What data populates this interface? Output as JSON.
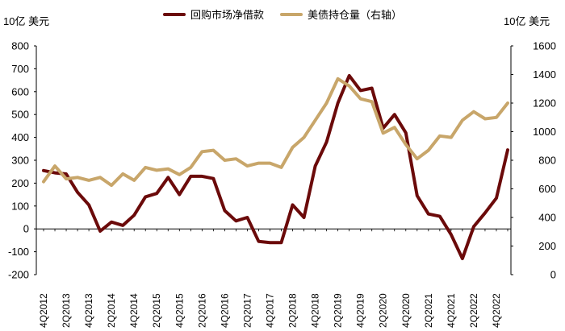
{
  "chart_data": {
    "type": "line",
    "left_unit": "10亿 美元",
    "right_unit": "10亿 美元",
    "colors": {
      "repo": "#6b0a0a",
      "treasury": "#c8a66a"
    },
    "x_categories": [
      "4Q2012",
      "1Q2013",
      "2Q2013",
      "3Q2013",
      "4Q2013",
      "1Q2014",
      "2Q2014",
      "3Q2014",
      "4Q2014",
      "1Q2015",
      "2Q2015",
      "3Q2015",
      "4Q2015",
      "1Q2016",
      "2Q2016",
      "3Q2016",
      "4Q2016",
      "1Q2017",
      "2Q2017",
      "3Q2017",
      "4Q2017",
      "1Q2018",
      "2Q2018",
      "3Q2018",
      "4Q2018",
      "1Q2019",
      "2Q2019",
      "3Q2019",
      "4Q2019",
      "1Q2020",
      "2Q2020",
      "3Q2020",
      "4Q2020",
      "1Q2021",
      "2Q2021",
      "3Q2021",
      "4Q2021",
      "1Q2022",
      "2Q2022",
      "3Q2022",
      "4Q2022",
      "1Q2023"
    ],
    "x_tick_labels": [
      "4Q2012",
      "2Q2013",
      "4Q2013",
      "2Q2014",
      "4Q2014",
      "2Q2015",
      "4Q2015",
      "2Q2016",
      "4Q2016",
      "2Q2017",
      "4Q2017",
      "2Q2018",
      "4Q2018",
      "2Q2019",
      "4Q2019",
      "2Q2020",
      "4Q2020",
      "2Q2021",
      "4Q2021",
      "2Q2022",
      "4Q2022"
    ],
    "y_left": {
      "min": -200,
      "max": 800,
      "ticks": [
        -200,
        -100,
        0,
        100,
        200,
        300,
        400,
        500,
        600,
        700,
        800
      ]
    },
    "y_right": {
      "min": 0,
      "max": 1600,
      "ticks": [
        0,
        200,
        400,
        600,
        800,
        1000,
        1200,
        1400,
        1600
      ]
    },
    "series": [
      {
        "name": "回购市场净借款",
        "axis": "left",
        "color": "#6b0a0a",
        "values": [
          255,
          245,
          240,
          160,
          105,
          -10,
          30,
          15,
          60,
          140,
          155,
          225,
          150,
          230,
          230,
          220,
          80,
          35,
          50,
          -55,
          -60,
          -60,
          105,
          50,
          275,
          380,
          550,
          670,
          605,
          615,
          440,
          500,
          420,
          145,
          65,
          55,
          -25,
          -130,
          10,
          70,
          135,
          345
        ]
      },
      {
        "name": "美债持仓量（右轴）",
        "axis": "right",
        "color": "#c8a66a",
        "values": [
          650,
          760,
          670,
          680,
          660,
          680,
          625,
          705,
          660,
          750,
          730,
          740,
          700,
          750,
          860,
          870,
          800,
          810,
          760,
          780,
          780,
          750,
          890,
          960,
          1080,
          1200,
          1370,
          1320,
          1230,
          1210,
          990,
          1030,
          910,
          810,
          870,
          970,
          960,
          1080,
          1140,
          1090,
          1100,
          1200
        ]
      }
    ]
  }
}
